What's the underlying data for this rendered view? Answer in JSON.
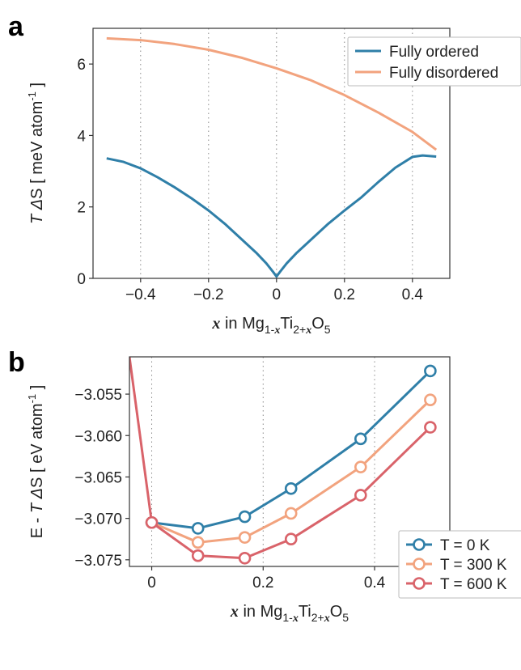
{
  "chart_data": [
    {
      "panel": "a",
      "type": "line",
      "ylabel_parts": {
        "var": "T",
        "delta": "Δ",
        "s": "S",
        "open": "[ meV atom",
        "sup": "-1",
        "close": " ]"
      },
      "xlabel_parts": {
        "var": "x",
        "mid": " in Mg",
        "sub1": "1-",
        "sub1var": "x",
        "ti": "Ti",
        "sub2": "2+",
        "sub2var": "x",
        "o": "O",
        "sub3": "5"
      },
      "xlim": [
        -0.54,
        0.51
      ],
      "ylim": [
        0,
        7.0
      ],
      "xticks": [
        -0.4,
        -0.2,
        0,
        0.2,
        0.4
      ],
      "xtick_labels": [
        "−0.4",
        "−0.2",
        "0",
        "0.2",
        "0.4"
      ],
      "yticks": [
        0,
        2,
        4,
        6
      ],
      "ytick_labels": [
        "0",
        "2",
        "4",
        "6"
      ],
      "grid": "vertical dotted",
      "legend_position": "top-right",
      "series": [
        {
          "name": "Fully ordered",
          "color": "#2f7fa8",
          "x": [
            -0.5,
            -0.45,
            -0.4,
            -0.35,
            -0.3,
            -0.25,
            -0.2,
            -0.15,
            -0.1,
            -0.06,
            -0.03,
            -0.01,
            0,
            0.01,
            0.03,
            0.06,
            0.1,
            0.15,
            0.2,
            0.25,
            0.3,
            0.35,
            0.4,
            0.43,
            0.47
          ],
          "y": [
            3.36,
            3.26,
            3.08,
            2.83,
            2.55,
            2.24,
            1.9,
            1.51,
            1.07,
            0.72,
            0.42,
            0.18,
            0.05,
            0.18,
            0.42,
            0.72,
            1.07,
            1.51,
            1.9,
            2.27,
            2.7,
            3.1,
            3.4,
            3.44,
            3.41
          ]
        },
        {
          "name": "Fully disordered",
          "color": "#f2a37e",
          "x": [
            -0.5,
            -0.4,
            -0.3,
            -0.2,
            -0.1,
            0,
            0.1,
            0.2,
            0.3,
            0.4,
            0.47
          ],
          "y": [
            6.72,
            6.67,
            6.56,
            6.4,
            6.17,
            5.88,
            5.55,
            5.13,
            4.64,
            4.1,
            3.6
          ]
        }
      ]
    },
    {
      "panel": "b",
      "type": "line",
      "ylabel_parts": {
        "pre": "E - ",
        "var": "T",
        "delta": "Δ",
        "s": "S",
        "open": "[ eV atom",
        "sup": "-1",
        "close": " ]"
      },
      "xlabel_parts": {
        "var": "x",
        "mid": " in Mg",
        "sub1": "1-",
        "sub1var": "x",
        "ti": "Ti",
        "sub2": "2+",
        "sub2var": "x",
        "o": "O",
        "sub3": "5"
      },
      "xlim": [
        -0.04,
        0.535
      ],
      "ylim": [
        -3.0758,
        -3.0505
      ],
      "xticks": [
        0,
        0.2,
        0.4
      ],
      "xtick_labels": [
        "0",
        "0.2",
        "0.4"
      ],
      "yticks": [
        -3.075,
        -3.07,
        -3.065,
        -3.06,
        -3.055
      ],
      "ytick_labels": [
        "−3.075",
        "−3.070",
        "−3.065",
        "−3.060",
        "−3.055"
      ],
      "grid": "vertical dotted",
      "legend_position": "bottom-right",
      "series": [
        {
          "name": "T = 0 K",
          "color": "#2f7fa8",
          "x": [
            0,
            0.083,
            0.167,
            0.25,
            0.375,
            0.5
          ],
          "y": [
            -3.0705,
            -3.0712,
            -3.0698,
            -3.0664,
            -3.0604,
            -3.0522
          ]
        },
        {
          "name": "T = 300 K",
          "color": "#f2a37e",
          "x": [
            0,
            0.083,
            0.167,
            0.25,
            0.375,
            0.5
          ],
          "y": [
            -3.0705,
            -3.0729,
            -3.0723,
            -3.0694,
            -3.0638,
            -3.0557
          ]
        },
        {
          "name": "T = 600 K",
          "color": "#d9636a",
          "x": [
            0,
            0.083,
            0.167,
            0.25,
            0.375,
            0.5
          ],
          "y": [
            -3.0705,
            -3.0745,
            -3.0748,
            -3.0725,
            -3.0672,
            -3.059
          ],
          "extra_left_segment": {
            "x": [
              -0.04,
              0
            ],
            "y": [
              -3.0505,
              -3.0705
            ]
          }
        }
      ]
    }
  ]
}
